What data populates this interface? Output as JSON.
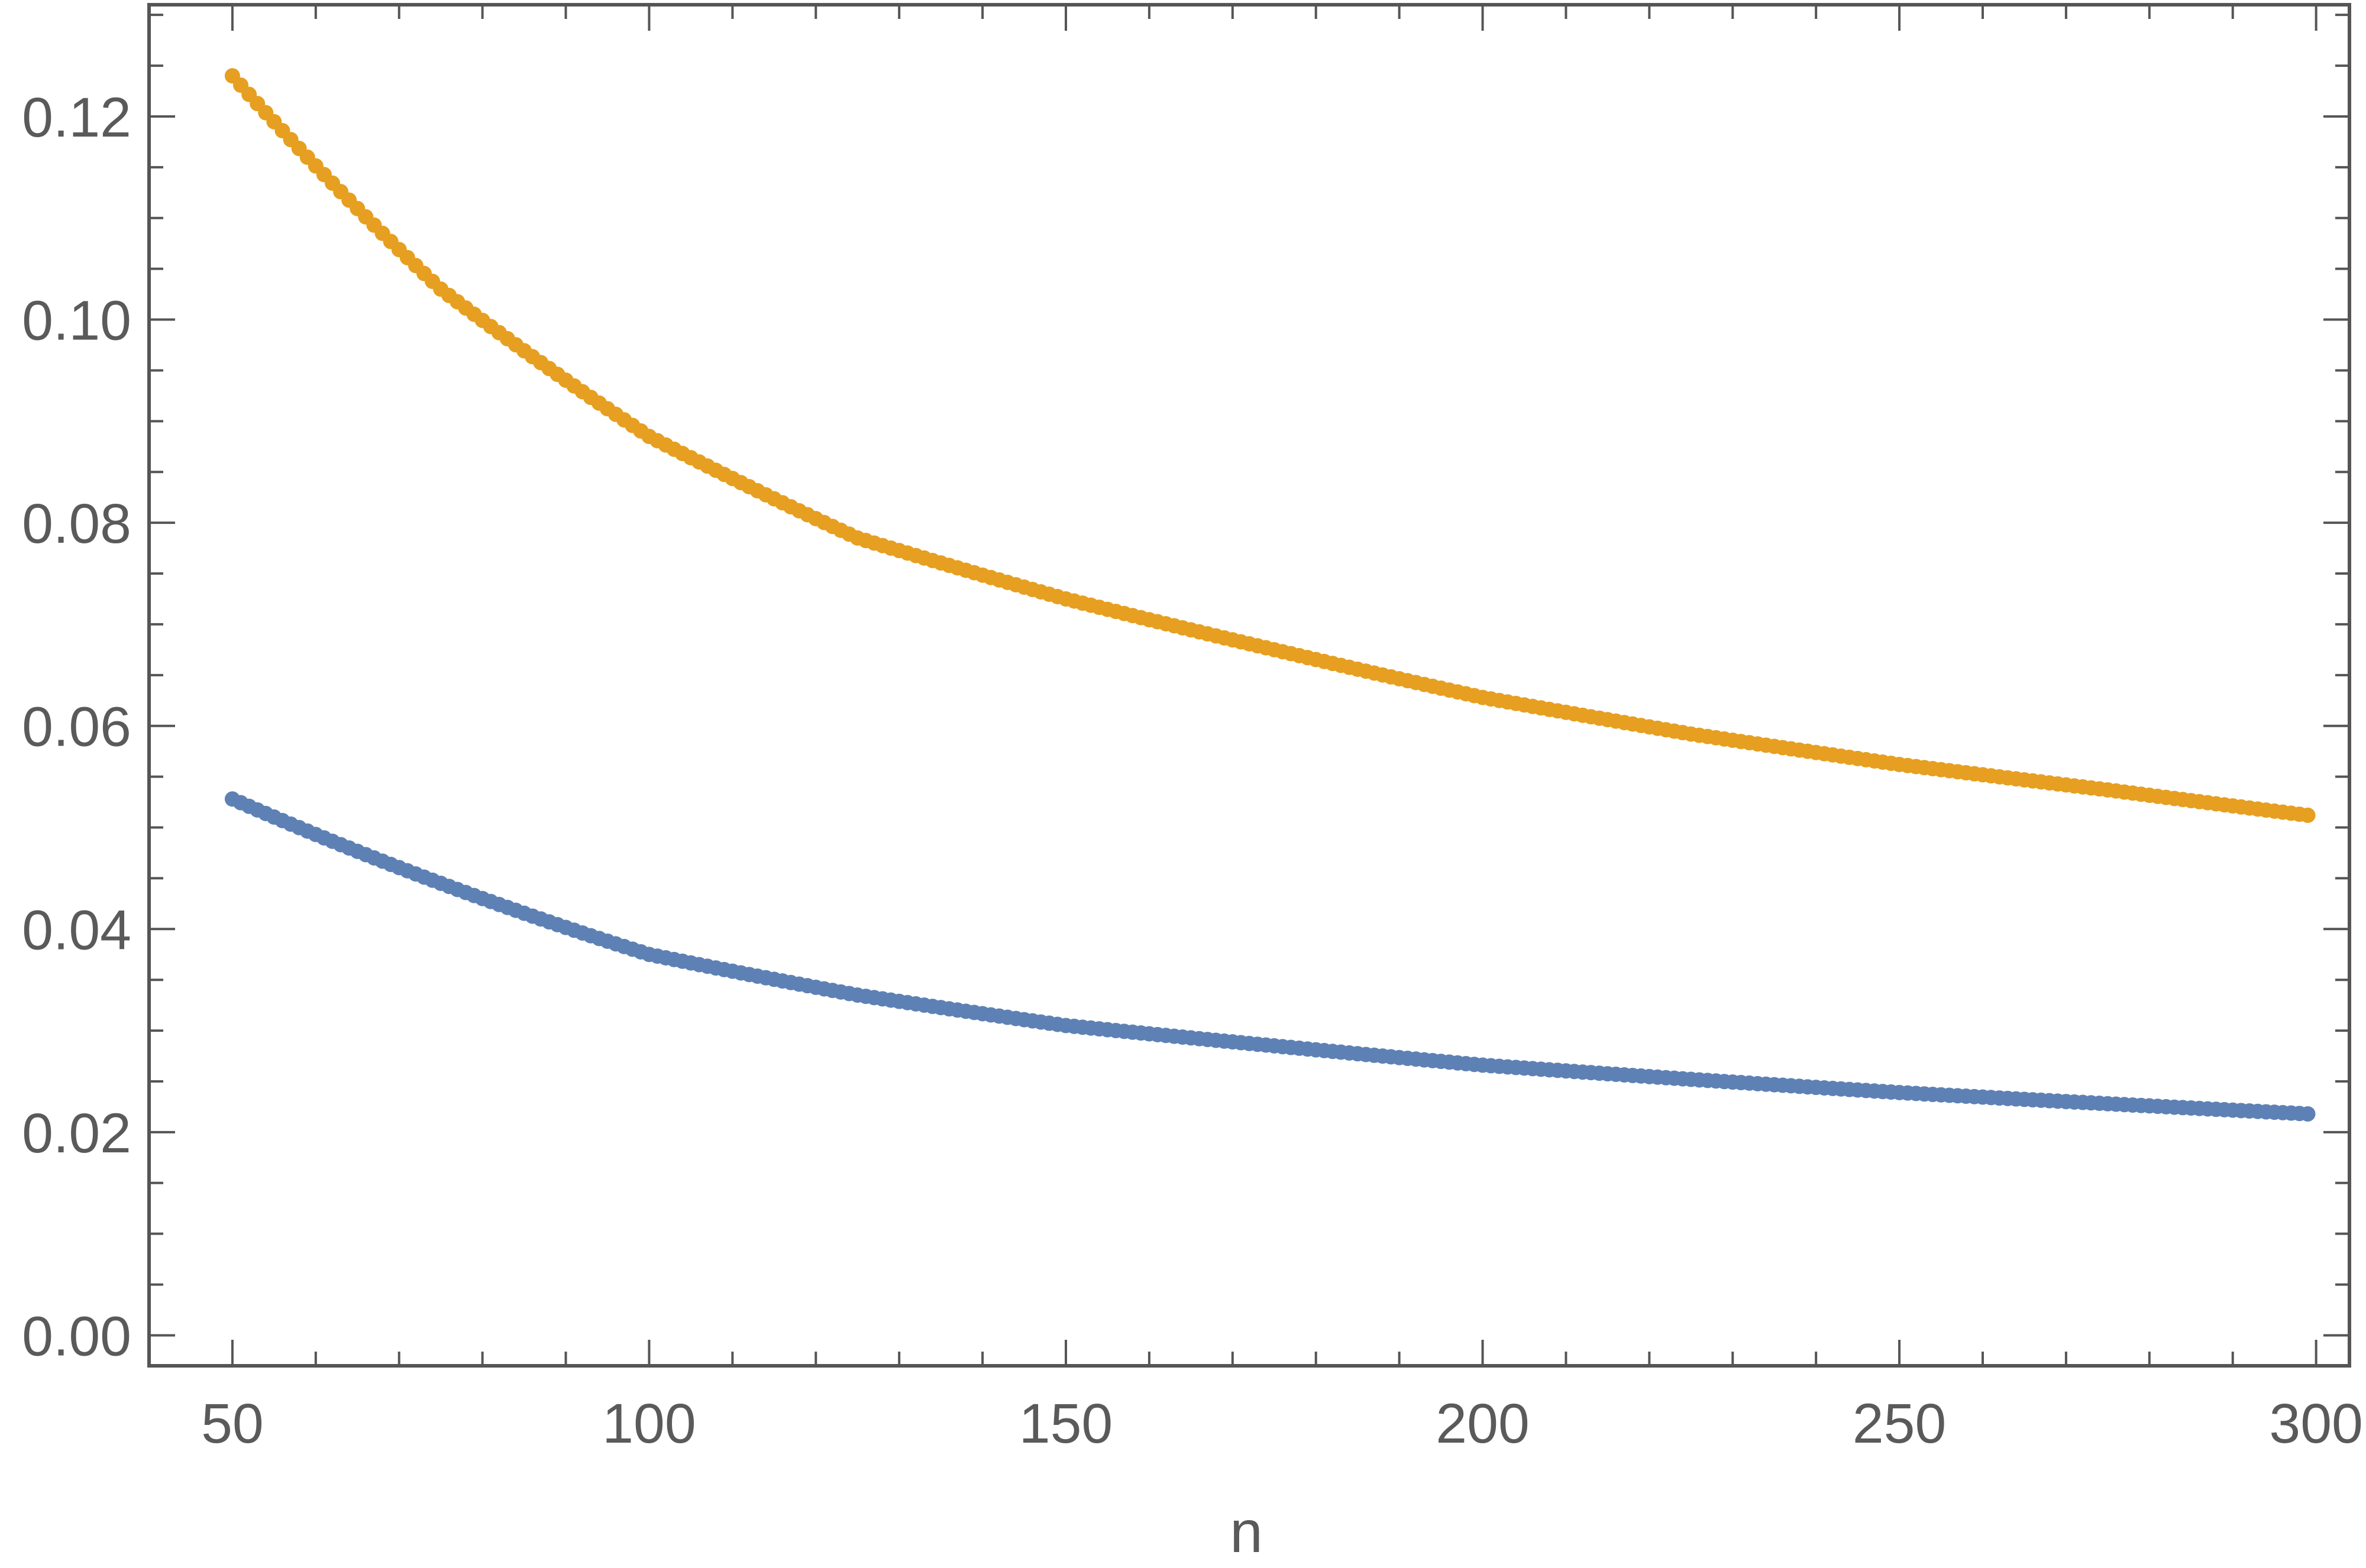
{
  "chart_data": {
    "type": "scatter",
    "xlabel": "n",
    "ylabel": "",
    "xlim": [
      40,
      304
    ],
    "ylim": [
      -0.003,
      0.131
    ],
    "x_ticks": [
      50,
      100,
      150,
      200,
      250,
      300
    ],
    "x_tick_labels": [
      "50",
      "100",
      "150",
      "200",
      "250",
      "300"
    ],
    "y_ticks": [
      0.0,
      0.02,
      0.04,
      0.06,
      0.08,
      0.1,
      0.12
    ],
    "y_tick_labels": [
      "0.00",
      "0.02",
      "0.04",
      "0.06",
      "0.08",
      "0.10",
      "0.12"
    ],
    "x_range": [
      50,
      299
    ],
    "grid": false,
    "frame_color": "#555555",
    "series": [
      {
        "color": "#E69F20",
        "points": [
          [
            50,
            0.124
          ],
          [
            75,
            0.103
          ],
          [
            100,
            0.0885
          ],
          [
            125,
            0.0785
          ],
          [
            150,
            0.0725
          ],
          [
            175,
            0.0675
          ],
          [
            200,
            0.0628
          ],
          [
            225,
            0.0592
          ],
          [
            250,
            0.0562
          ],
          [
            275,
            0.0537
          ],
          [
            299,
            0.0512
          ]
        ]
      },
      {
        "color": "#5E81B5",
        "points": [
          [
            50,
            0.0528
          ],
          [
            75,
            0.0445
          ],
          [
            100,
            0.0375
          ],
          [
            125,
            0.0335
          ],
          [
            150,
            0.0305
          ],
          [
            175,
            0.0285
          ],
          [
            200,
            0.0266
          ],
          [
            225,
            0.0252
          ],
          [
            250,
            0.0239
          ],
          [
            275,
            0.0228
          ],
          [
            299,
            0.0218
          ]
        ]
      }
    ]
  }
}
